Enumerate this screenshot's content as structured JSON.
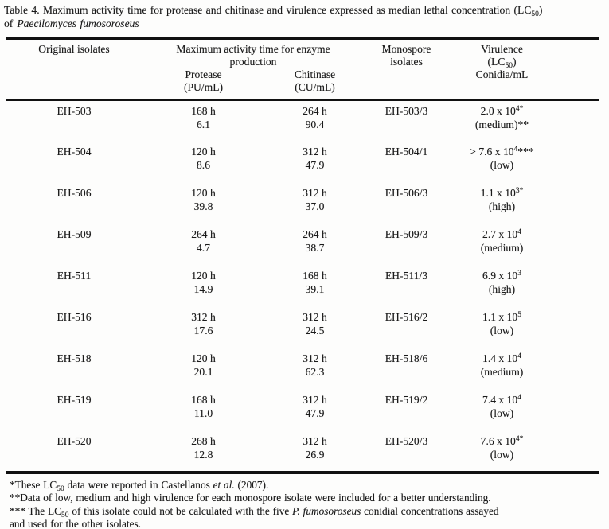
{
  "caption": {
    "line1_pre": "Table 4. Maximum activity time for protease and chitinase and virulence expressed as median lethal concentration (LC",
    "lc_sub": "50",
    "line1_post": ")",
    "line2_pre": "of",
    "species": "Paecilomyces fumosoroseus"
  },
  "header": {
    "original": "Original isolates",
    "enzyme_group": "Maximum activity time for enzyme production",
    "protease_line1": "Protease",
    "protease_line2": "(PU/mL)",
    "chitinase_line1": "Chitinase",
    "chitinase_line2": "(CU/mL)",
    "monospore_line1": "Monospore",
    "monospore_line2": "isolates",
    "virulence_line1": "Virulence",
    "virulence_lc_pre": "(LC",
    "virulence_lc_sub": "50",
    "virulence_lc_post": ")",
    "virulence_line3": "Conidia/mL"
  },
  "rows": [
    {
      "original": "EH-503",
      "protease_time": "168 h",
      "protease_value": "6.1",
      "chitinase_time": "264 h",
      "chitinase_value": "90.4",
      "monospore": "EH-503/3",
      "lc_prefix": "2.0 x 10",
      "lc_sup": "4*",
      "lc_suffix": "",
      "level": "(medium)**"
    },
    {
      "original": "EH-504",
      "protease_time": "120 h",
      "protease_value": "8.6",
      "chitinase_time": "312 h",
      "chitinase_value": "47.9",
      "monospore": "EH-504/1",
      "lc_prefix": "> 7.6 x 10",
      "lc_sup": "4",
      "lc_suffix": "***",
      "level": "(low)"
    },
    {
      "original": "EH-506",
      "protease_time": "120 h",
      "protease_value": "39.8",
      "chitinase_time": "312 h",
      "chitinase_value": "37.0",
      "monospore": "EH-506/3",
      "lc_prefix": "1.1 x 10",
      "lc_sup": "3*",
      "lc_suffix": "",
      "level": "(high)"
    },
    {
      "original": "EH-509",
      "protease_time": "264 h",
      "protease_value": "4.7",
      "chitinase_time": "264 h",
      "chitinase_value": "38.7",
      "monospore": "EH-509/3",
      "lc_prefix": "2.7 x 10",
      "lc_sup": "4",
      "lc_suffix": "",
      "level": "(medium)"
    },
    {
      "original": "EH-511",
      "protease_time": "120 h",
      "protease_value": "14.9",
      "chitinase_time": "168 h",
      "chitinase_value": "39.1",
      "monospore": "EH-511/3",
      "lc_prefix": "6.9 x 10",
      "lc_sup": "3",
      "lc_suffix": "",
      "level": "(high)"
    },
    {
      "original": "EH-516",
      "protease_time": "312 h",
      "protease_value": "17.6",
      "chitinase_time": "312 h",
      "chitinase_value": "24.5",
      "monospore": "EH-516/2",
      "lc_prefix": "1.1 x 10",
      "lc_sup": "5",
      "lc_suffix": "",
      "level": "(low)"
    },
    {
      "original": "EH-518",
      "protease_time": "120 h",
      "protease_value": "20.1",
      "chitinase_time": "312 h",
      "chitinase_value": "62.3",
      "monospore": "EH-518/6",
      "lc_prefix": "1.4 x 10",
      "lc_sup": "4",
      "lc_suffix": "",
      "level": "(medium)"
    },
    {
      "original": "EH-519",
      "protease_time": "168 h",
      "protease_value": "11.0",
      "chitinase_time": "312 h",
      "chitinase_value": "47.9",
      "monospore": "EH-519/2",
      "lc_prefix": "7.4 x 10",
      "lc_sup": "4",
      "lc_suffix": "",
      "level": "(low)"
    },
    {
      "original": "EH-520",
      "protease_time": "268 h",
      "protease_value": "12.8",
      "chitinase_time": "312 h",
      "chitinase_value": "26.9",
      "monospore": "EH-520/3",
      "lc_prefix": "7.6 x 10",
      "lc_sup": "4*",
      "lc_suffix": "",
      "level": "(low)"
    }
  ],
  "footnotes": {
    "fn1": {
      "pre": "*These LC",
      "sub": "50",
      "mid": " data were reported in Castellanos ",
      "italic": "et al.",
      "post": " (2007)."
    },
    "fn2": "**Data of low, medium and high virulence for each monospore isolate were included for a better understanding.",
    "fn3": {
      "pre": "*** The LC",
      "sub": "50",
      "mid": " of this isolate could not be calculated with the five ",
      "italic": "P. fumosoroseus",
      "post": " conidial concentrations assayed"
    },
    "fn4": "and used for the other isolates."
  }
}
